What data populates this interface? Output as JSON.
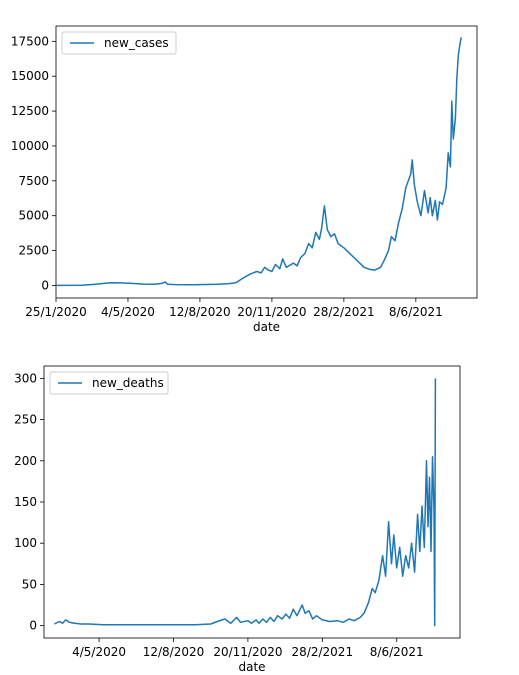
{
  "chart_data": [
    {
      "type": "line",
      "xlabel": "date",
      "ylabel": "",
      "legend_position": "top-left",
      "grid": false,
      "xlim": [
        "2020-01-25",
        "2021-09-01"
      ],
      "ylim": [
        -900,
        18600
      ],
      "x_tick_labels": [
        "25/1/2020",
        "4/5/2020",
        "12/8/2020",
        "20/11/2020",
        "28/2/2021",
        "8/6/2021"
      ],
      "x_tick_dates": [
        "2020-01-25",
        "2020-05-04",
        "2020-08-12",
        "2020-11-20",
        "2021-02-28",
        "2021-06-08"
      ],
      "y_ticks": [
        0,
        2500,
        5000,
        7500,
        10000,
        12500,
        15000,
        17500
      ],
      "y_tick_labels": [
        "0",
        "2500",
        "5000",
        "7500",
        "10000",
        "12500",
        "15000",
        "17500"
      ],
      "color": "#1f77b4",
      "series": [
        {
          "name": "new_cases",
          "points": [
            [
              "2020-01-25",
              0
            ],
            [
              "2020-03-01",
              10
            ],
            [
              "2020-03-20",
              80
            ],
            [
              "2020-04-01",
              150
            ],
            [
              "2020-04-10",
              200
            ],
            [
              "2020-04-25",
              180
            ],
            [
              "2020-05-10",
              150
            ],
            [
              "2020-05-25",
              100
            ],
            [
              "2020-06-10",
              80
            ],
            [
              "2020-06-20",
              150
            ],
            [
              "2020-06-25",
              250
            ],
            [
              "2020-06-28",
              80
            ],
            [
              "2020-07-10",
              60
            ],
            [
              "2020-08-01",
              50
            ],
            [
              "2020-08-20",
              70
            ],
            [
              "2020-09-05",
              80
            ],
            [
              "2020-09-20",
              120
            ],
            [
              "2020-10-01",
              200
            ],
            [
              "2020-10-10",
              500
            ],
            [
              "2020-10-20",
              800
            ],
            [
              "2020-10-30",
              1000
            ],
            [
              "2020-11-05",
              900
            ],
            [
              "2020-11-10",
              1300
            ],
            [
              "2020-11-15",
              1100
            ],
            [
              "2020-11-20",
              1000
            ],
            [
              "2020-11-25",
              1500
            ],
            [
              "2020-12-01",
              1200
            ],
            [
              "2020-12-05",
              1900
            ],
            [
              "2020-12-10",
              1300
            ],
            [
              "2020-12-20",
              1600
            ],
            [
              "2020-12-25",
              1400
            ],
            [
              "2020-12-30",
              2000
            ],
            [
              "2021-01-05",
              2300
            ],
            [
              "2021-01-10",
              3000
            ],
            [
              "2021-01-15",
              2700
            ],
            [
              "2021-01-20",
              3800
            ],
            [
              "2021-01-25",
              3300
            ],
            [
              "2021-01-28",
              4100
            ],
            [
              "2021-02-01",
              5700
            ],
            [
              "2021-02-05",
              4000
            ],
            [
              "2021-02-10",
              3500
            ],
            [
              "2021-02-15",
              3700
            ],
            [
              "2021-02-20",
              3000
            ],
            [
              "2021-02-28",
              2700
            ],
            [
              "2021-03-10",
              2200
            ],
            [
              "2021-03-20",
              1700
            ],
            [
              "2021-03-28",
              1300
            ],
            [
              "2021-04-05",
              1150
            ],
            [
              "2021-04-12",
              1100
            ],
            [
              "2021-04-20",
              1300
            ],
            [
              "2021-04-25",
              1800
            ],
            [
              "2021-05-01",
              2500
            ],
            [
              "2021-05-05",
              3500
            ],
            [
              "2021-05-10",
              3200
            ],
            [
              "2021-05-15",
              4500
            ],
            [
              "2021-05-20",
              5500
            ],
            [
              "2021-05-25",
              7000
            ],
            [
              "2021-06-01",
              8000
            ],
            [
              "2021-06-03",
              9000
            ],
            [
              "2021-06-06",
              7200
            ],
            [
              "2021-06-10",
              6000
            ],
            [
              "2021-06-15",
              5000
            ],
            [
              "2021-06-20",
              6800
            ],
            [
              "2021-06-25",
              5200
            ],
            [
              "2021-06-28",
              6300
            ],
            [
              "2021-07-01",
              5000
            ],
            [
              "2021-07-05",
              6100
            ],
            [
              "2021-07-08",
              4700
            ],
            [
              "2021-07-11",
              6000
            ],
            [
              "2021-07-15",
              5800
            ],
            [
              "2021-07-20",
              7000
            ],
            [
              "2021-07-23",
              9500
            ],
            [
              "2021-07-26",
              8500
            ],
            [
              "2021-07-28",
              13200
            ],
            [
              "2021-07-30",
              10500
            ],
            [
              "2021-08-02",
              12000
            ],
            [
              "2021-08-04",
              14800
            ],
            [
              "2021-08-06",
              16500
            ],
            [
              "2021-08-08",
              17200
            ],
            [
              "2021-08-10",
              17800
            ]
          ]
        }
      ]
    },
    {
      "type": "line",
      "xlabel": "date",
      "ylabel": "",
      "legend_position": "top-left",
      "grid": false,
      "xlim": [
        "2020-02-20",
        "2021-09-01"
      ],
      "ylim": [
        -15,
        315
      ],
      "x_tick_labels": [
        "4/5/2020",
        "12/8/2020",
        "20/11/2020",
        "28/2/2021",
        "8/6/2021"
      ],
      "x_tick_dates": [
        "2020-05-04",
        "2020-08-12",
        "2020-11-20",
        "2021-02-28",
        "2021-06-08"
      ],
      "y_ticks": [
        0,
        50,
        100,
        150,
        200,
        250,
        300
      ],
      "y_tick_labels": [
        "0",
        "50",
        "100",
        "150",
        "200",
        "250",
        "300"
      ],
      "color": "#1f77b4",
      "series": [
        {
          "name": "new_deaths",
          "points": [
            [
              "2020-03-05",
              2
            ],
            [
              "2020-03-12",
              5
            ],
            [
              "2020-03-16",
              3
            ],
            [
              "2020-03-20",
              7
            ],
            [
              "2020-03-25",
              4
            ],
            [
              "2020-04-01",
              3
            ],
            [
              "2020-04-10",
              2
            ],
            [
              "2020-04-20",
              2
            ],
            [
              "2020-05-10",
              1
            ],
            [
              "2020-06-10",
              1
            ],
            [
              "2020-07-10",
              1
            ],
            [
              "2020-08-10",
              1
            ],
            [
              "2020-09-10",
              1
            ],
            [
              "2020-10-01",
              2
            ],
            [
              "2020-10-10",
              5
            ],
            [
              "2020-10-20",
              8
            ],
            [
              "2020-10-28",
              3
            ],
            [
              "2020-11-05",
              10
            ],
            [
              "2020-11-10",
              4
            ],
            [
              "2020-11-20",
              6
            ],
            [
              "2020-11-25",
              3
            ],
            [
              "2020-12-01",
              7
            ],
            [
              "2020-12-05",
              3
            ],
            [
              "2020-12-10",
              8
            ],
            [
              "2020-12-15",
              4
            ],
            [
              "2020-12-20",
              10
            ],
            [
              "2020-12-25",
              5
            ],
            [
              "2020-12-30",
              12
            ],
            [
              "2021-01-05",
              8
            ],
            [
              "2021-01-10",
              14
            ],
            [
              "2021-01-15",
              9
            ],
            [
              "2021-01-20",
              20
            ],
            [
              "2021-01-25",
              12
            ],
            [
              "2021-02-01",
              25
            ],
            [
              "2021-02-05",
              15
            ],
            [
              "2021-02-10",
              18
            ],
            [
              "2021-02-15",
              8
            ],
            [
              "2021-02-20",
              12
            ],
            [
              "2021-02-28",
              7
            ],
            [
              "2021-03-10",
              5
            ],
            [
              "2021-03-20",
              6
            ],
            [
              "2021-03-28",
              4
            ],
            [
              "2021-04-05",
              8
            ],
            [
              "2021-04-12",
              6
            ],
            [
              "2021-04-20",
              10
            ],
            [
              "2021-04-25",
              15
            ],
            [
              "2021-05-01",
              28
            ],
            [
              "2021-05-06",
              45
            ],
            [
              "2021-05-10",
              40
            ],
            [
              "2021-05-15",
              55
            ],
            [
              "2021-05-20",
              85
            ],
            [
              "2021-05-24",
              60
            ],
            [
              "2021-05-28",
              126
            ],
            [
              "2021-06-01",
              75
            ],
            [
              "2021-06-04",
              110
            ],
            [
              "2021-06-08",
              70
            ],
            [
              "2021-06-12",
              95
            ],
            [
              "2021-06-16",
              60
            ],
            [
              "2021-06-20",
              85
            ],
            [
              "2021-06-24",
              70
            ],
            [
              "2021-06-28",
              100
            ],
            [
              "2021-07-02",
              65
            ],
            [
              "2021-07-06",
              135
            ],
            [
              "2021-07-09",
              90
            ],
            [
              "2021-07-12",
              145
            ],
            [
              "2021-07-15",
              95
            ],
            [
              "2021-07-18",
              200
            ],
            [
              "2021-07-20",
              120
            ],
            [
              "2021-07-22",
              180
            ],
            [
              "2021-07-24",
              90
            ],
            [
              "2021-07-26",
              205
            ],
            [
              "2021-07-28",
              140
            ],
            [
              "2021-07-29",
              0
            ],
            [
              "2021-07-30",
              300
            ]
          ]
        }
      ]
    }
  ]
}
